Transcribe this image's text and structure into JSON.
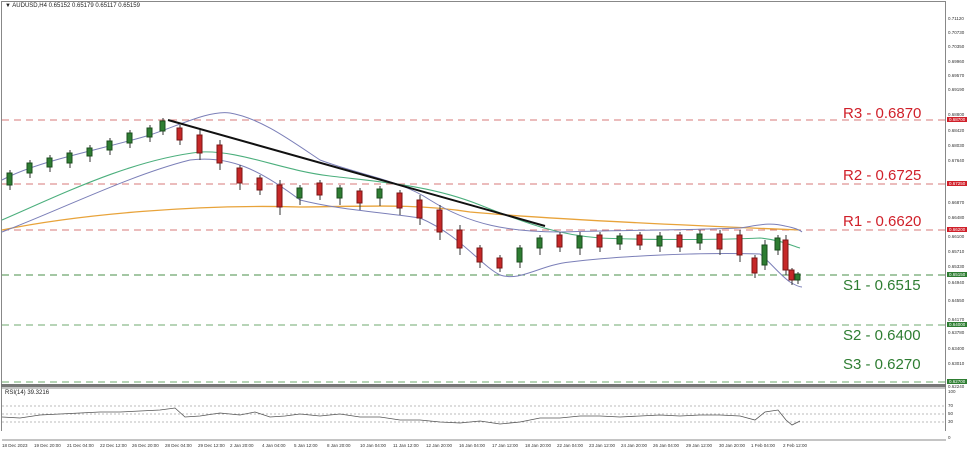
{
  "header": {
    "symbol_line": "AUDUSD,H4  0.65152 0.65179 0.65117 0.65159"
  },
  "rsi": {
    "label": "RSI(14) 39.3216",
    "levels": [
      "100",
      "70",
      "50",
      "30",
      "0"
    ]
  },
  "levels": {
    "r3": {
      "label": "R3 - 0.6870",
      "tag": "0.68700",
      "color": "#d0202a"
    },
    "r2": {
      "label": "R2 - 0.6725",
      "tag": "0.67250",
      "color": "#d0202a"
    },
    "r1": {
      "label": "R1 - 0.6620",
      "tag": "0.66200",
      "color": "#d0202a"
    },
    "s1": {
      "label": "S1 - 0.6515",
      "tag": "0.65150",
      "color": "#2e7d32"
    },
    "s2": {
      "label": "S2 - 0.6400",
      "tag": "0.64000",
      "color": "#2e7d32"
    },
    "s3": {
      "label": "S3 - 0.6270",
      "tag": "0.62700",
      "color": "#2e7d32"
    }
  },
  "yaxis": {
    "ticks": [
      "0.71120",
      "0.70730",
      "0.70350",
      "0.69960",
      "0.69570",
      "0.69190",
      "0.68800",
      "0.68420",
      "0.68030",
      "0.67640",
      "0.66870",
      "0.66480",
      "0.66100",
      "0.65710",
      "0.65330",
      "0.64940",
      "0.64550",
      "0.64170",
      "0.63780",
      "0.63400",
      "0.63010",
      "0.62240"
    ]
  },
  "xaxis": {
    "ticks": [
      "18 Dec 2023",
      "19 Dec 20:00",
      "21 Dec 04:00",
      "22 Dec 12:00",
      "26 Dec 20:00",
      "28 Dec 04:00",
      "29 Dec 12:00",
      "2 Jan 20:00",
      "4 Jan 04:00",
      "5 Jan 12:00",
      "8 Jan 20:00",
      "10 Jan 04:00",
      "11 Jan 12:00",
      "12 Jan 20:00",
      "16 Jan 04:00",
      "17 Jan 12:00",
      "18 Jan 20:00",
      "22 Jan 04:00",
      "23 Jan 12:00",
      "24 Jan 20:00",
      "26 Jan 04:00",
      "29 Jan 12:00",
      "30 Jan 20:00",
      "1 Feb 04:00",
      "2 Feb 12:00"
    ]
  },
  "chart_data": {
    "type": "candlestick",
    "title": "AUDUSD,H4",
    "ohlc_last": {
      "open": 0.65152,
      "high": 0.65179,
      "low": 0.65117,
      "close": 0.65159
    },
    "ylim": [
      0.6224,
      0.714
    ],
    "x_range": [
      "18 Dec 2023",
      "2 Feb 12:00"
    ],
    "horizontal_levels": [
      {
        "name": "R3",
        "value": 0.687,
        "style": "dashed",
        "color": "#d0202a"
      },
      {
        "name": "R2",
        "value": 0.6725,
        "style": "dashed",
        "color": "#d0202a"
      },
      {
        "name": "R1",
        "value": 0.662,
        "style": "dashed",
        "color": "#d0202a"
      },
      {
        "name": "S1",
        "value": 0.6515,
        "style": "dashed",
        "color": "#2e7d32"
      },
      {
        "name": "S2",
        "value": 0.64,
        "style": "dashed",
        "color": "#2e7d32"
      },
      {
        "name": "S3",
        "value": 0.627,
        "style": "dashed",
        "color": "#2e7d32"
      }
    ],
    "trendline": {
      "from": {
        "x": "28 Dec 04:00",
        "y": 0.687
      },
      "to": {
        "x": "23 Jan 12:00",
        "y": 0.659
      },
      "color": "#000000"
    },
    "indicators": [
      {
        "name": "Bollinger Bands",
        "color": "#7b7fb8"
      },
      {
        "name": "MA (medium)",
        "color": "#4caf7d"
      },
      {
        "name": "MA (long)",
        "color": "#e8a33a"
      },
      {
        "name": "RSI(14)",
        "value": 39.3216,
        "levels": [
          70,
          50,
          30
        ]
      }
    ],
    "approx_close_path": [
      {
        "x": "18 Dec 2023",
        "y": 0.67
      },
      {
        "x": "21 Dec 04:00",
        "y": 0.676
      },
      {
        "x": "26 Dec 20:00",
        "y": 0.68
      },
      {
        "x": "28 Dec 04:00",
        "y": 0.686
      },
      {
        "x": "2 Jan 20:00",
        "y": 0.676
      },
      {
        "x": "5 Jan 12:00",
        "y": 0.67
      },
      {
        "x": "11 Jan 12:00",
        "y": 0.669
      },
      {
        "x": "12 Jan 20:00",
        "y": 0.665
      },
      {
        "x": "17 Jan 12:00",
        "y": 0.654
      },
      {
        "x": "22 Jan 04:00",
        "y": 0.658
      },
      {
        "x": "26 Jan 04:00",
        "y": 0.66
      },
      {
        "x": "30 Jan 20:00",
        "y": 0.657
      },
      {
        "x": "1 Feb 04:00",
        "y": 0.662
      },
      {
        "x": "2 Feb 12:00",
        "y": 0.6516
      }
    ]
  }
}
